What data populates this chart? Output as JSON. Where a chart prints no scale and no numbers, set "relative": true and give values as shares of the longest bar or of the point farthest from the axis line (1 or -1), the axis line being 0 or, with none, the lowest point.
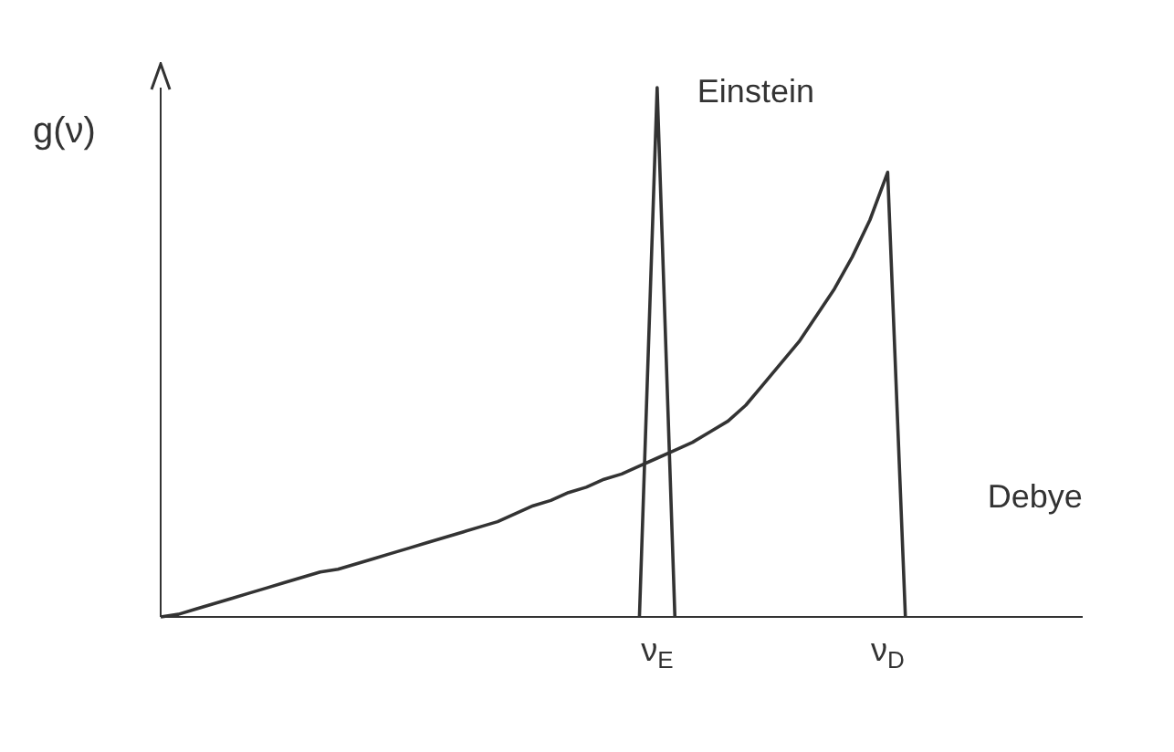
{
  "chart_data": {
    "type": "line",
    "relative": true,
    "ylabel": "g(ν)",
    "categories": [
      null,
      null,
      null,
      null,
      null,
      null,
      null,
      null,
      null,
      null,
      null,
      null,
      null,
      null,
      null,
      null,
      null,
      null,
      null,
      null,
      null,
      null,
      null,
      null,
      null,
      null,
      null,
      null,
      "ν$_{E}$",
      null,
      null,
      null,
      null,
      null,
      null,
      null,
      null,
      null,
      null,
      null,
      null,
      "ν$_{D}$",
      null,
      null,
      null,
      null,
      null,
      null,
      null,
      null,
      null,
      null,
      null
    ],
    "series": [
      {
        "name": "Einstein",
        "color": "#333333",
        "values": [
          null,
          null,
          null,
          null,
          null,
          null,
          null,
          null,
          null,
          null,
          null,
          null,
          null,
          null,
          null,
          null,
          null,
          null,
          null,
          null,
          null,
          null,
          null,
          null,
          null,
          null,
          null,
          0,
          1,
          0,
          null,
          null,
          null,
          null,
          null,
          null,
          null,
          null,
          null,
          null,
          null,
          null,
          null,
          null,
          null,
          null,
          null,
          null,
          null,
          null,
          null,
          null,
          null
        ]
      },
      {
        "name": "Debye",
        "color": "#333333",
        "values": [
          0,
          0.005,
          0.015,
          0.025,
          0.035,
          0.045,
          0.055,
          0.065,
          0.075,
          0.085,
          0.09,
          0.1,
          0.11,
          0.12,
          0.13,
          0.14,
          0.15,
          0.16,
          0.17,
          0.18,
          0.195,
          0.21,
          0.22,
          0.235,
          0.245,
          0.26,
          0.27,
          0.285,
          0.3,
          0.315,
          0.33,
          0.35,
          0.37,
          0.4,
          0.44,
          0.48,
          0.52,
          0.57,
          0.62,
          0.68,
          0.75,
          0.84,
          0,
          null,
          null,
          null,
          null,
          null,
          null,
          null,
          null,
          null,
          null
        ]
      }
    ],
    "grid": false,
    "legend": false,
    "marker": "none",
    "line_style": "solid"
  }
}
